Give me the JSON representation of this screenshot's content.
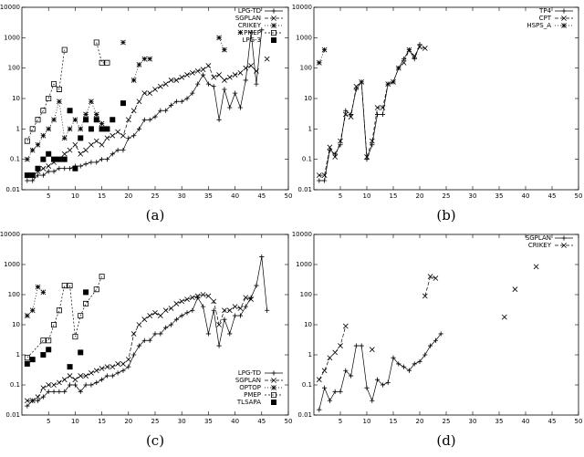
{
  "chart_data": [
    {
      "type": "line",
      "caption": "(a)",
      "ylog": true,
      "legend": "top-right",
      "xlim": [
        0,
        50
      ],
      "xticks": [
        5,
        10,
        15,
        20,
        25,
        30,
        35,
        40,
        45,
        50
      ],
      "ylim": [
        0.01,
        10000
      ],
      "yticks": [
        0.01,
        0.1,
        1,
        10,
        100,
        1000,
        10000
      ],
      "series": [
        {
          "name": "LPG-TD",
          "color": "#000",
          "marker": "plus",
          "dash": "none",
          "x": [
            1,
            2,
            3,
            4,
            5,
            6,
            7,
            8,
            9,
            10,
            11,
            12,
            13,
            14,
            15,
            16,
            17,
            18,
            19,
            20,
            21,
            22,
            23,
            24,
            25,
            26,
            27,
            28,
            29,
            30,
            31,
            32,
            33,
            34,
            35,
            36,
            37,
            38,
            39,
            40,
            41,
            42,
            43,
            44,
            45
          ],
          "values": [
            0.02,
            0.02,
            0.03,
            0.03,
            0.04,
            0.04,
            0.05,
            0.05,
            0.05,
            0.06,
            0.06,
            0.07,
            0.08,
            0.08,
            0.1,
            0.1,
            0.15,
            0.2,
            0.2,
            0.5,
            0.6,
            1,
            2,
            2,
            2.5,
            4,
            4,
            6,
            8,
            8,
            10,
            15,
            30,
            60,
            30,
            25,
            2,
            20,
            5,
            15,
            5,
            40,
            1500,
            30,
            1800
          ]
        },
        {
          "name": "SGPLAN",
          "color": "#000",
          "marker": "cross",
          "dash": "4 2",
          "x": [
            1,
            2,
            3,
            4,
            5,
            6,
            7,
            8,
            9,
            10,
            11,
            12,
            13,
            14,
            15,
            16,
            17,
            18,
            19,
            20,
            21,
            22,
            23,
            24,
            25,
            26,
            27,
            28,
            29,
            30,
            31,
            32,
            33,
            34,
            35,
            36,
            37,
            38,
            39,
            40,
            41,
            42,
            43,
            44,
            45,
            46
          ],
          "values": [
            0.03,
            0.03,
            0.04,
            0.05,
            0.06,
            0.08,
            0.1,
            0.15,
            0.2,
            0.3,
            0.15,
            0.2,
            0.3,
            0.4,
            0.3,
            0.5,
            0.6,
            0.8,
            0.6,
            2,
            4,
            8,
            15,
            15,
            20,
            25,
            30,
            40,
            40,
            50,
            60,
            70,
            80,
            90,
            120,
            50,
            60,
            40,
            50,
            60,
            70,
            100,
            120,
            80,
            null,
            200
          ]
        },
        {
          "name": "CRIKEY",
          "color": "#000",
          "marker": "star",
          "dash": "1 2",
          "x": [
            1,
            2,
            3,
            4,
            5,
            6,
            7,
            8,
            9,
            10,
            11,
            12,
            13,
            14,
            15,
            16,
            19,
            20,
            21,
            22,
            23,
            24,
            30,
            37,
            38,
            39,
            41
          ],
          "values": [
            0.1,
            0.2,
            0.3,
            0.6,
            1,
            2,
            8,
            0.5,
            1,
            2,
            1,
            3,
            8,
            3,
            1.5,
            null,
            700,
            null,
            40,
            130,
            200,
            200,
            null,
            1000,
            400,
            null,
            1500
          ]
        },
        {
          "name": "PMEP",
          "color": "#000",
          "marker": "square",
          "dash": "2 2",
          "x": [
            1,
            2,
            3,
            4,
            5,
            6,
            7,
            8,
            10,
            14,
            15,
            16
          ],
          "values": [
            0.4,
            1,
            2,
            4,
            10,
            30,
            20,
            400,
            null,
            700,
            150,
            150
          ]
        },
        {
          "name": "LPG-3",
          "color": "#000",
          "marker": "filled-square",
          "dash": "none-points",
          "x": [
            1,
            2,
            3,
            4,
            5,
            6,
            7,
            8,
            9,
            10,
            11,
            12,
            13,
            14,
            15,
            16,
            17,
            19
          ],
          "values": [
            0.03,
            0.03,
            0.05,
            0.1,
            0.15,
            0.1,
            0.1,
            0.1,
            4,
            0.05,
            0.5,
            2,
            1,
            2,
            1,
            1,
            2,
            7
          ]
        }
      ]
    },
    {
      "type": "line",
      "caption": "(b)",
      "ylog": true,
      "legend": "top-right",
      "xlim": [
        0,
        50
      ],
      "xticks": [
        5,
        10,
        15,
        20,
        25,
        30,
        35,
        40,
        45,
        50
      ],
      "ylim": [
        0.01,
        10000
      ],
      "yticks": [
        0.01,
        0.1,
        1,
        10,
        100,
        1000,
        10000
      ],
      "series": [
        {
          "name": "TP4",
          "color": "#000",
          "marker": "plus",
          "dash": "none",
          "x": [
            1,
            2,
            3,
            4,
            5,
            6,
            7,
            8,
            9,
            10,
            11,
            12,
            13,
            14,
            15,
            16,
            17,
            18,
            19,
            20
          ],
          "values": [
            0.02,
            0.02,
            0.2,
            0.15,
            0.3,
            4,
            3,
            20,
            35,
            0.1,
            0.3,
            3,
            3,
            30,
            35,
            100,
            200,
            400,
            200,
            600
          ]
        },
        {
          "name": "CPT",
          "color": "#000",
          "marker": "cross",
          "dash": "4 2",
          "x": [
            1,
            2,
            3,
            4,
            5,
            6,
            7,
            8,
            9,
            10,
            11,
            12,
            13,
            14,
            15,
            16,
            17,
            18,
            19,
            20,
            21
          ],
          "values": [
            0.03,
            0.03,
            0.25,
            0.12,
            0.4,
            3,
            2.5,
            25,
            35,
            0.12,
            0.4,
            5,
            5,
            30,
            35,
            100,
            150,
            400,
            250,
            500,
            450
          ]
        },
        {
          "name": "HSPS_A",
          "color": "#000",
          "marker": "star",
          "dash": "1 2",
          "x": [
            1,
            2
          ],
          "values": [
            150,
            400
          ]
        }
      ]
    },
    {
      "type": "line",
      "caption": "(c)",
      "ylog": true,
      "legend": "bottom-right",
      "xlim": [
        0,
        50
      ],
      "xticks": [
        5,
        10,
        15,
        20,
        25,
        30,
        35,
        40,
        45,
        50
      ],
      "ylim": [
        0.01,
        10000
      ],
      "yticks": [
        0.01,
        0.1,
        1,
        10,
        100,
        1000,
        10000
      ],
      "series": [
        {
          "name": "LPG-TD",
          "color": "#000",
          "marker": "plus",
          "dash": "none",
          "x": [
            1,
            2,
            3,
            4,
            5,
            6,
            7,
            8,
            9,
            10,
            11,
            12,
            13,
            14,
            15,
            16,
            17,
            18,
            19,
            20,
            21,
            22,
            23,
            24,
            25,
            26,
            27,
            28,
            29,
            30,
            31,
            32,
            33,
            34,
            35,
            36,
            37,
            38,
            39,
            40,
            41,
            42,
            43,
            44,
            45,
            46
          ],
          "values": [
            0.02,
            0.03,
            0.03,
            0.04,
            0.06,
            0.06,
            0.06,
            0.06,
            0.1,
            0.1,
            0.06,
            0.1,
            0.1,
            0.12,
            0.15,
            0.2,
            0.2,
            0.25,
            0.3,
            0.4,
            1,
            2,
            3,
            3,
            5,
            5,
            8,
            10,
            15,
            20,
            25,
            30,
            80,
            40,
            5,
            30,
            2,
            15,
            5,
            20,
            20,
            40,
            80,
            200,
            1800,
            30
          ]
        },
        {
          "name": "SGPLAN",
          "color": "#000",
          "marker": "cross",
          "dash": "4 2",
          "x": [
            1,
            2,
            3,
            4,
            5,
            6,
            7,
            8,
            9,
            10,
            11,
            12,
            13,
            14,
            15,
            16,
            17,
            18,
            19,
            20,
            21,
            22,
            23,
            24,
            25,
            26,
            27,
            28,
            29,
            30,
            31,
            32,
            33,
            34,
            35,
            36,
            37,
            38,
            39,
            40,
            41,
            42,
            43
          ],
          "values": [
            0.03,
            0.03,
            0.04,
            0.08,
            0.1,
            0.1,
            0.12,
            0.15,
            0.2,
            0.15,
            0.2,
            0.2,
            0.25,
            0.3,
            0.35,
            0.4,
            0.4,
            0.5,
            0.5,
            0.7,
            5,
            10,
            15,
            20,
            25,
            20,
            30,
            35,
            50,
            60,
            70,
            80,
            90,
            100,
            90,
            60,
            10,
            30,
            30,
            40,
            35,
            80,
            70
          ]
        },
        {
          "name": "OPTOP",
          "color": "#000",
          "marker": "star",
          "dash": "1 2",
          "x": [
            1,
            2,
            3,
            4
          ],
          "values": [
            20,
            30,
            180,
            120
          ]
        },
        {
          "name": "PMEP",
          "color": "#000",
          "marker": "square",
          "dash": "2 2",
          "x": [
            1,
            4,
            5,
            6,
            7,
            8,
            9,
            10,
            11,
            12,
            14,
            15
          ],
          "values": [
            0.8,
            3,
            3,
            10,
            30,
            200,
            200,
            4,
            20,
            50,
            150,
            400
          ]
        },
        {
          "name": "TLSAPA",
          "color": "#000",
          "marker": "filled-square",
          "dash": "none-points",
          "x": [
            1,
            2,
            4,
            5,
            9,
            11,
            12
          ],
          "values": [
            0.5,
            0.7,
            1,
            1.5,
            0.4,
            1.2,
            120
          ]
        }
      ]
    },
    {
      "type": "line",
      "caption": "(d)",
      "ylog": true,
      "legend": "top-right",
      "xlim": [
        0,
        50
      ],
      "xticks": [
        5,
        10,
        15,
        20,
        25,
        30,
        35,
        40,
        45,
        50
      ],
      "ylim": [
        0.01,
        10000
      ],
      "yticks": [
        0.01,
        0.1,
        1,
        10,
        100,
        1000,
        10000
      ],
      "series": [
        {
          "name": "SGPLAN",
          "color": "#000",
          "marker": "plus",
          "dash": "none",
          "x": [
            1,
            2,
            3,
            4,
            5,
            6,
            7,
            8,
            9,
            10,
            11,
            12,
            13,
            14,
            15,
            16,
            17,
            18,
            19,
            20,
            21,
            22,
            23,
            24
          ],
          "values": [
            0.015,
            0.08,
            0.03,
            0.06,
            0.06,
            0.3,
            0.2,
            2,
            2,
            0.08,
            0.03,
            0.15,
            0.1,
            0.12,
            0.8,
            0.5,
            0.4,
            0.3,
            0.5,
            0.6,
            1,
            2,
            3,
            5
          ]
        },
        {
          "name": "CRIKEY",
          "color": "#000",
          "marker": "cross",
          "dash": "4 2",
          "x": [
            1,
            2,
            3,
            4,
            5,
            6,
            8,
            11,
            15,
            21,
            22,
            23,
            30,
            36,
            37,
            38,
            40,
            42
          ],
          "values": [
            0.15,
            0.3,
            0.8,
            1.2,
            2,
            9,
            null,
            1.5,
            null,
            90,
            400,
            350,
            null,
            18,
            null,
            150,
            null,
            850
          ]
        }
      ]
    }
  ]
}
